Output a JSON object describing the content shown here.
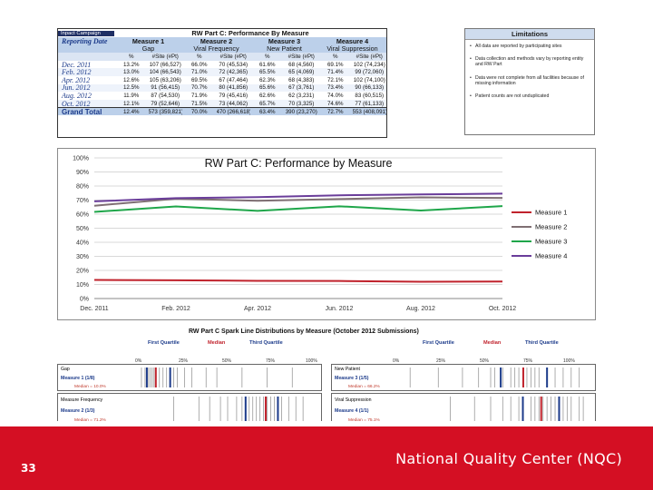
{
  "table": {
    "corner_top": "Inpact Campaign",
    "corner_bottom": "Reporting Date",
    "title": "RW Part C: Performance By Measure",
    "measures": [
      {
        "name": "Measure 1",
        "sub": "Gap"
      },
      {
        "name": "Measure 2",
        "sub": "Viral Frequency"
      },
      {
        "name": "Measure 3",
        "sub": "New Patient"
      },
      {
        "name": "Measure 4",
        "sub": "Viral Suppression"
      }
    ],
    "col_pct": "%",
    "col_site": "#Site (#Pt)",
    "rows": [
      {
        "date": "Dec. 2011",
        "v": [
          "13.2%",
          "107 (66,527)",
          "66.0%",
          "70 (45,534)",
          "61.6%",
          "68 (4,560)",
          "69.1%",
          "102 (74,234)"
        ]
      },
      {
        "date": "Feb. 2012",
        "v": [
          "13.0%",
          "104 (66,543)",
          "71.0%",
          "72 (42,365)",
          "65.5%",
          "65 (4,069)",
          "71.4%",
          "99 (72,060)"
        ]
      },
      {
        "date": "Apr. 2012",
        "v": [
          "12.6%",
          "105 (63,206)",
          "69.5%",
          "67 (47,464)",
          "62.3%",
          "68 (4,383)",
          "72.1%",
          "102 (74,100)"
        ]
      },
      {
        "date": "Jun. 2012",
        "v": [
          "12.5%",
          "91 (56,415)",
          "70.7%",
          "80 (41,856)",
          "65.6%",
          "67 (3,761)",
          "73.4%",
          "90 (66,133)"
        ]
      },
      {
        "date": "Aug. 2012",
        "v": [
          "11.9%",
          "87 (54,530)",
          "71.9%",
          "79 (45,416)",
          "62.6%",
          "62 (3,231)",
          "74.0%",
          "83 (60,515)"
        ]
      },
      {
        "date": "Oct. 2012",
        "v": [
          "12.1%",
          "79 (52,646)",
          "71.5%",
          "73 (44,062)",
          "65.7%",
          "70 (3,325)",
          "74.6%",
          "77 (61,133)"
        ]
      }
    ],
    "total": {
      "date": "Grand Total",
      "v": [
        "12.4%",
        "573 (359,821)",
        "70.0%",
        "470 (266,618)",
        "63.4%",
        "390 (23,270)",
        "72.7%",
        "553 (408,091)"
      ]
    }
  },
  "limitations": {
    "title": "Limitations",
    "items": [
      "All data are reported by participating sites",
      "Data collection and methods vary by reporting entity and RW Part",
      "Data were not complete from all facilities because of missing information",
      "Patient counts are not unduplicated"
    ]
  },
  "chart_data": {
    "type": "line",
    "title": "RW Part C: Performance by Measure",
    "x": [
      "Dec. 2011",
      "Feb. 2012",
      "Apr. 2012",
      "Jun. 2012",
      "Aug. 2012",
      "Oct. 2012"
    ],
    "y_ticks": [
      "0%",
      "10%",
      "20%",
      "30%",
      "40%",
      "50%",
      "60%",
      "70%",
      "80%",
      "90%",
      "100%"
    ],
    "ylim": [
      0,
      100
    ],
    "series": [
      {
        "name": "Measure 1",
        "color": "#c0222c",
        "values": [
          13.2,
          13.0,
          12.6,
          12.5,
          11.9,
          12.1
        ]
      },
      {
        "name": "Measure 2",
        "color": "#7f6f73",
        "values": [
          66.0,
          71.0,
          69.5,
          70.7,
          71.9,
          71.5
        ]
      },
      {
        "name": "Measure 3",
        "color": "#1fa64a",
        "values": [
          61.6,
          65.5,
          62.3,
          65.6,
          62.6,
          65.7
        ]
      },
      {
        "name": "Measure 4",
        "color": "#6a3d9a",
        "values": [
          69.1,
          71.4,
          72.1,
          73.4,
          74.0,
          74.6
        ]
      }
    ]
  },
  "spark": {
    "title": "RW Part C Spark Line Distributions by Measure (October 2012 Submissions)",
    "legend": {
      "first": "First Quartile",
      "median": "Median",
      "third": "Third Quartile"
    },
    "ticks": [
      "0%",
      "25%",
      "50%",
      "75%",
      "100%"
    ],
    "panels": [
      {
        "header": "Gap",
        "label": "Measure 1 (1/8)",
        "median": "Median = 10.0%"
      },
      {
        "header": "Measure Frequency",
        "label": "Measure 2 (1/3)",
        "median": "Median = 71.2%"
      },
      {
        "header": "New Patient",
        "label": "Measure 3 (1/5)",
        "median": "Median = 66.2%"
      },
      {
        "header": "Viral Suppression",
        "label": "Measure 4 (1/1)",
        "median": "Median = 75.1%"
      }
    ]
  },
  "footer": {
    "page": "33",
    "org": "National Quality Center (NQC)"
  }
}
